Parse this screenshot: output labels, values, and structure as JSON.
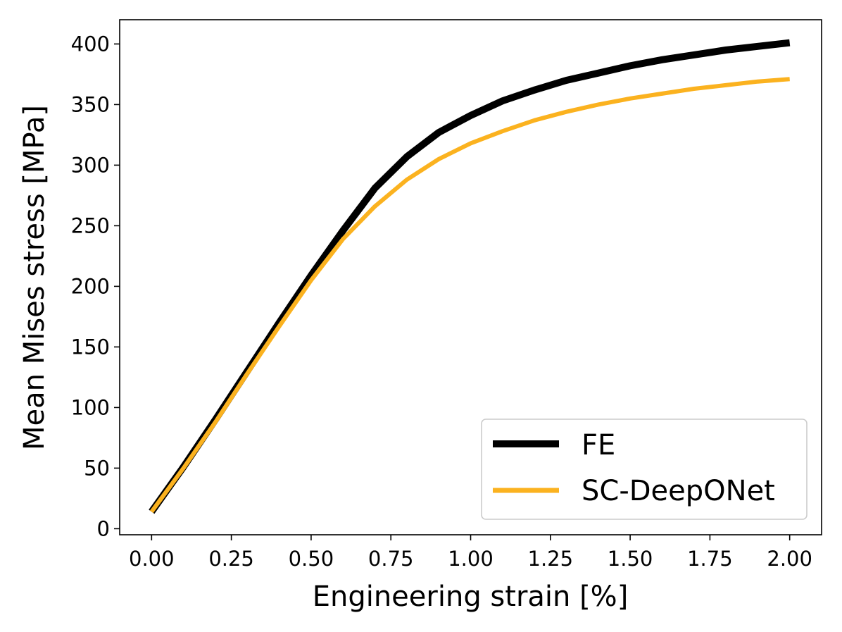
{
  "chart_data": {
    "type": "line",
    "title": "",
    "xlabel": "Engineering strain [%]",
    "ylabel": "Mean Mises stress [MPa]",
    "xlim": [
      -0.1,
      2.1
    ],
    "ylim": [
      -5,
      420
    ],
    "xticks": [
      "0.00",
      "0.25",
      "0.50",
      "0.75",
      "1.00",
      "1.25",
      "1.50",
      "1.75",
      "2.00"
    ],
    "yticks": [
      "0",
      "50",
      "100",
      "150",
      "200",
      "250",
      "300",
      "350",
      "400"
    ],
    "grid": false,
    "legend_position": "lower-right",
    "series": [
      {
        "name": "FE",
        "color": "#000000",
        "x": [
          0.0,
          0.1,
          0.2,
          0.3,
          0.4,
          0.5,
          0.6,
          0.7,
          0.8,
          0.9,
          1.0,
          1.1,
          1.2,
          1.3,
          1.4,
          1.5,
          1.6,
          1.7,
          1.8,
          1.9,
          2.0
        ],
        "y": [
          14,
          51,
          90,
          130,
          170,
          209,
          246,
          281,
          307,
          327,
          341,
          353,
          362,
          370,
          376,
          382,
          387,
          391,
          395,
          398,
          401
        ]
      },
      {
        "name": "SC-DeepONet",
        "color": "#FBB21F",
        "x": [
          0.0,
          0.1,
          0.2,
          0.3,
          0.4,
          0.5,
          0.6,
          0.7,
          0.8,
          0.9,
          1.0,
          1.1,
          1.2,
          1.3,
          1.4,
          1.5,
          1.6,
          1.7,
          1.8,
          1.9,
          2.0
        ],
        "y": [
          14,
          50,
          88,
          128,
          167,
          205,
          239,
          266,
          288,
          305,
          318,
          328,
          337,
          344,
          350,
          355,
          359,
          363,
          366,
          369,
          371
        ]
      }
    ]
  }
}
